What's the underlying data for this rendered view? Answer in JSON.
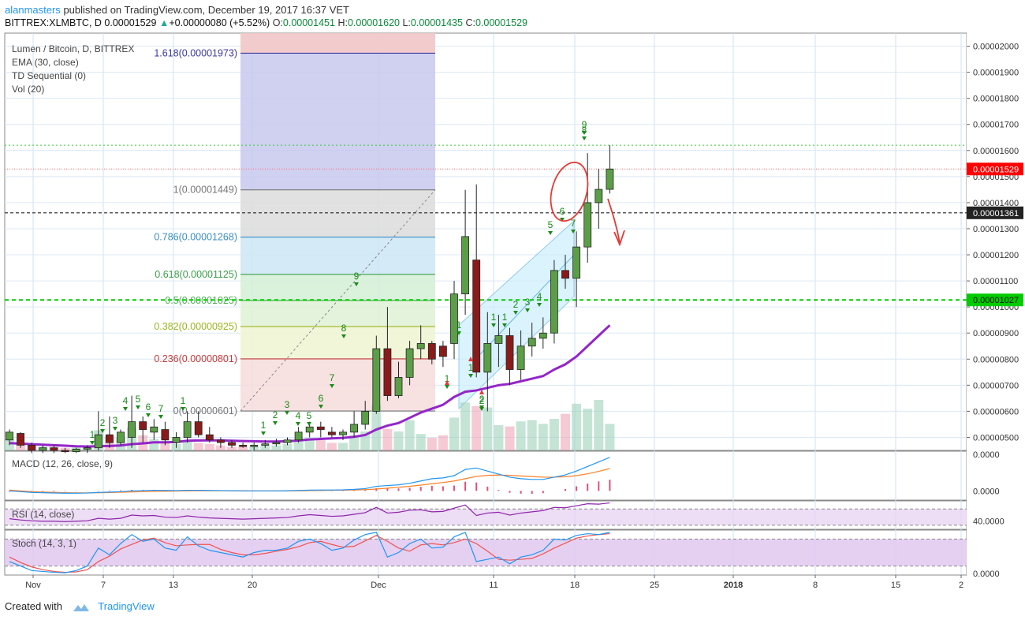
{
  "header": {
    "author": "alanmasters",
    "published_text": "published on TradingView.com, December 19, 2017 16:37 VET",
    "symbol": "BITTREX:XLMBTC, D",
    "last": "0.00001529",
    "change": "+0.00000080 (+5.52%)",
    "open_label": "O:",
    "open": "0.00001451",
    "high_label": "H:",
    "high": "0.00001620",
    "low_label": "L:",
    "low": "0.00001435",
    "close_label": "C:",
    "close": "0.00001529"
  },
  "legend": {
    "title": "Lumen / Bitcoin, D, BITTREX",
    "ema": "EMA (30, close)",
    "td": "TD Sequential (0)",
    "vol": "Vol (20)"
  },
  "panes": {
    "macd": "MACD (12, 26, close, 9)",
    "rsi": "RSI (14, close)",
    "stoch": "Stoch (14, 3, 1)"
  },
  "price_axis_labels": [
    "0.00002000",
    "0.00001900",
    "0.00001800",
    "0.00001700",
    "0.00001600",
    "0.00001500",
    "0.00001400",
    "0.00001300",
    "0.00001200",
    "0.00001100",
    "0.00001000",
    "0.00000900",
    "0.00000800",
    "0.00000700",
    "0.00000600",
    "0.00000500"
  ],
  "price_badges": {
    "last": "0.00001529",
    "dotted": "0.00001361",
    "support": "0.00001027"
  },
  "macd_axis_labels": [
    "0.0000",
    "0.0000"
  ],
  "rsi_axis_label": "40.0000",
  "stoch_axis_label": "0.0000",
  "time_axis_labels": [
    "Nov",
    "7",
    "13",
    "20",
    "Dec",
    "11",
    "18",
    "25",
    "2018",
    "8",
    "15",
    "2"
  ],
  "fib_labels": [
    "1.618(0.00001973)",
    "1(0.00001449)",
    "0.786(0.00001268)",
    "0.618(0.00001125)",
    "0.5(0.00001025)",
    "0.382(0.00000925)",
    "0.236(0.00000801)",
    "0(0.00000601)"
  ],
  "td_labels": [
    "1",
    "2",
    "3",
    "4",
    "5",
    "6",
    "7",
    "1",
    "1",
    "2",
    "3",
    "4",
    "5",
    "6",
    "7",
    "8",
    "9",
    "1",
    "1",
    "2",
    "1",
    "1",
    "2",
    "3",
    "4",
    "5",
    "6",
    "7",
    "8",
    "9",
    "1",
    "2"
  ],
  "footer": {
    "created_with": "Created with",
    "brand": "TradingView"
  },
  "colors": {
    "up_candle": "#5b9e47",
    "down_candle": "#8a1b1b",
    "ema": "#9426c9",
    "support_line": "#00cc00",
    "last_badge": "#ff0000",
    "dotted_badge": "#222222",
    "support_badge": "#00cc00",
    "fib_1618": "#3a3aa0",
    "fib_1": "#777777",
    "fib_0786": "#3a8fc4",
    "fib_0618": "#3aa04a",
    "fib_05": "#4caf50",
    "fib_0382": "#9bb51f",
    "fib_0236": "#c43a3a",
    "fib_0": "#777777",
    "macd_line": "#2196f3",
    "signal_line": "#ff7f27",
    "rsi_line": "#8e24aa",
    "stoch_k": "#2196f3",
    "stoch_d": "#ef5350"
  },
  "chart_data": {
    "type": "candlestick",
    "title": "Lumen / Bitcoin, D, BITTREX",
    "xlabel": "",
    "ylabel": "",
    "ylim": [
      4.5e-06,
      2.05e-05
    ],
    "candles": [
      {
        "o": 4.9e-06,
        "h": 5.3e-06,
        "l": 4.7e-06,
        "c": 5.2e-06
      },
      {
        "o": 5.15e-06,
        "h": 5.2e-06,
        "l": 4.6e-06,
        "c": 4.7e-06
      },
      {
        "o": 4.7e-06,
        "h": 4.8e-06,
        "l": 4.4e-06,
        "c": 4.5e-06
      },
      {
        "o": 4.5e-06,
        "h": 4.7e-06,
        "l": 4.4e-06,
        "c": 4.6e-06
      },
      {
        "o": 4.6e-06,
        "h": 4.7e-06,
        "l": 4.4e-06,
        "c": 4.5e-06
      },
      {
        "o": 4.5e-06,
        "h": 4.6e-06,
        "l": 4.4e-06,
        "c": 4.45e-06
      },
      {
        "o": 4.45e-06,
        "h": 4.6e-06,
        "l": 4.4e-06,
        "c": 4.55e-06
      },
      {
        "o": 4.55e-06,
        "h": 4.7e-06,
        "l": 4.4e-06,
        "c": 4.6e-06
      },
      {
        "o": 4.6e-06,
        "h": 6e-06,
        "l": 4.5e-06,
        "c": 5.1e-06
      },
      {
        "o": 5.1e-06,
        "h": 5.8e-06,
        "l": 4.6e-06,
        "c": 4.8e-06
      },
      {
        "o": 4.8e-06,
        "h": 5.3e-06,
        "l": 4.7e-06,
        "c": 5.2e-06
      },
      {
        "o": 5e-06,
        "h": 6.6e-06,
        "l": 4.6e-06,
        "c": 5.6e-06
      },
      {
        "o": 5.6e-06,
        "h": 5.8e-06,
        "l": 4.8e-06,
        "c": 5.3e-06
      },
      {
        "o": 5.2e-06,
        "h": 5.7e-06,
        "l": 4.9e-06,
        "c": 5.4e-06
      },
      {
        "o": 5.3e-06,
        "h": 5.6e-06,
        "l": 4.7e-06,
        "c": 4.9e-06
      },
      {
        "o": 4.8e-06,
        "h": 5.2e-06,
        "l": 4.6e-06,
        "c": 5e-06
      },
      {
        "o": 5e-06,
        "h": 6e-06,
        "l": 4.8e-06,
        "c": 5.6e-06
      },
      {
        "o": 5.6e-06,
        "h": 6e-06,
        "l": 5e-06,
        "c": 5.1e-06
      },
      {
        "o": 5.1e-06,
        "h": 5.4e-06,
        "l": 4.8e-06,
        "c": 4.9e-06
      },
      {
        "o": 4.9e-06,
        "h": 5e-06,
        "l": 4.6e-06,
        "c": 4.8e-06
      },
      {
        "o": 4.8e-06,
        "h": 4.9e-06,
        "l": 4.6e-06,
        "c": 4.7e-06
      },
      {
        "o": 4.7e-06,
        "h": 4.8e-06,
        "l": 4.6e-06,
        "c": 4.65e-06
      },
      {
        "o": 4.65e-06,
        "h": 4.8e-06,
        "l": 4.5e-06,
        "c": 4.7e-06
      },
      {
        "o": 4.7e-06,
        "h": 4.9e-06,
        "l": 4.6e-06,
        "c": 4.75e-06
      },
      {
        "o": 4.75e-06,
        "h": 4.95e-06,
        "l": 4.65e-06,
        "c": 4.8e-06
      },
      {
        "o": 4.8e-06,
        "h": 5e-06,
        "l": 4.7e-06,
        "c": 4.9e-06
      },
      {
        "o": 4.9e-06,
        "h": 5.4e-06,
        "l": 4.8e-06,
        "c": 5.2e-06
      },
      {
        "o": 5.2e-06,
        "h": 5.6e-06,
        "l": 5e-06,
        "c": 5.4e-06
      },
      {
        "o": 5.4e-06,
        "h": 5.6e-06,
        "l": 5e-06,
        "c": 5.3e-06
      },
      {
        "o": 5.2e-06,
        "h": 5.4e-06,
        "l": 5e-06,
        "c": 5.1e-06
      },
      {
        "o": 5.1e-06,
        "h": 5.3e-06,
        "l": 4.9e-06,
        "c": 5.2e-06
      },
      {
        "o": 5.2e-06,
        "h": 6e-06,
        "l": 5e-06,
        "c": 5.5e-06
      },
      {
        "o": 5.5e-06,
        "h": 6.4e-06,
        "l": 5.3e-06,
        "c": 6e-06
      },
      {
        "o": 6e-06,
        "h": 8.9e-06,
        "l": 5.9e-06,
        "c": 8.4e-06
      },
      {
        "o": 8.4e-06,
        "h": 1e-05,
        "l": 6.4e-06,
        "c": 6.6e-06
      },
      {
        "o": 6.6e-06,
        "h": 7.9e-06,
        "l": 6.5e-06,
        "c": 7.3e-06
      },
      {
        "o": 7.3e-06,
        "h": 8.7e-06,
        "l": 7e-06,
        "c": 8.4e-06
      },
      {
        "o": 8.4e-06,
        "h": 9.3e-06,
        "l": 8e-06,
        "c": 8.6e-06
      },
      {
        "o": 8.6e-06,
        "h": 8.7e-06,
        "l": 7.8e-06,
        "c": 8e-06
      },
      {
        "o": 8.5e-06,
        "h": 8.7e-06,
        "l": 7.7e-06,
        "c": 8.1e-06
      },
      {
        "o": 8.6e-06,
        "h": 1.1e-05,
        "l": 8e-06,
        "c": 1.05e-05
      },
      {
        "o": 1.05e-05,
        "h": 1.449e-05,
        "l": 9.7e-06,
        "c": 1.27e-05
      },
      {
        "o": 1.18e-05,
        "h": 1.47e-05,
        "l": 7.3e-06,
        "c": 7.5e-06
      },
      {
        "o": 7.5e-06,
        "h": 9.8e-06,
        "l": 6e-06,
        "c": 8.6e-06
      },
      {
        "o": 8.6e-06,
        "h": 9.7e-06,
        "l": 7.7e-06,
        "c": 8.9e-06
      },
      {
        "o": 8.9e-06,
        "h": 9.2e-06,
        "l": 7e-06,
        "c": 7.6e-06
      },
      {
        "o": 7.6e-06,
        "h": 9.1e-06,
        "l": 7.2e-06,
        "c": 8.5e-06
      },
      {
        "o": 8.5e-06,
        "h": 9.4e-06,
        "l": 8.1e-06,
        "c": 8.8e-06
      },
      {
        "o": 8.8e-06,
        "h": 9.6e-06,
        "l": 8.4e-06,
        "c": 9e-06
      },
      {
        "o": 9e-06,
        "h": 1.18e-05,
        "l": 8.6e-06,
        "c": 1.14e-05
      },
      {
        "o": 1.14e-05,
        "h": 1.2e-05,
        "l": 1.07e-05,
        "c": 1.11e-05
      },
      {
        "o": 1.11e-05,
        "h": 1.29e-05,
        "l": 1e-05,
        "c": 1.23e-05
      },
      {
        "o": 1.23e-05,
        "h": 1.59e-05,
        "l": 1.17e-05,
        "c": 1.4e-05
      },
      {
        "o": 1.4e-05,
        "h": 1.53e-05,
        "l": 1.3e-05,
        "c": 1.451e-05
      },
      {
        "o": 1.451e-05,
        "h": 1.62e-05,
        "l": 1.435e-05,
        "c": 1.529e-05
      }
    ],
    "ema30": [
      4.78e-06,
      4.76e-06,
      4.74e-06,
      4.72e-06,
      4.7e-06,
      4.68e-06,
      4.66e-06,
      4.65e-06,
      4.66e-06,
      4.67e-06,
      4.69e-06,
      4.74e-06,
      4.77e-06,
      4.81e-06,
      4.81e-06,
      4.82e-06,
      4.87e-06,
      4.88e-06,
      4.89e-06,
      4.88e-06,
      4.87e-06,
      4.86e-06,
      4.85e-06,
      4.84e-06,
      4.84e-06,
      4.85e-06,
      4.88e-06,
      4.92e-06,
      4.94e-06,
      4.96e-06,
      4.98e-06,
      5.02e-06,
      5.09e-06,
      5.3e-06,
      5.45e-06,
      5.55e-06,
      5.75e-06,
      5.95e-06,
      6.1e-06,
      6.25e-06,
      6.55e-06,
      6.75e-06,
      6.8e-06,
      6.9e-06,
      7e-06,
      7.05e-06,
      7.15e-06,
      7.25e-06,
      7.35e-06,
      7.6e-06,
      7.8e-06,
      8.1e-06,
      8.5e-06,
      8.9e-06,
      9.3e-06
    ],
    "fibonacci": [
      {
        "level": "1.618",
        "price": 1.973e-05
      },
      {
        "level": "1",
        "price": 1.449e-05
      },
      {
        "level": "0.786",
        "price": 1.268e-05
      },
      {
        "level": "0.618",
        "price": 1.125e-05
      },
      {
        "level": "0.5",
        "price": 1.025e-05
      },
      {
        "level": "0.382",
        "price": 9.25e-06
      },
      {
        "level": "0.236",
        "price": 8.01e-06
      },
      {
        "level": "0",
        "price": 6.01e-06
      }
    ],
    "horizontal_lines": [
      1.62e-05,
      1.529e-05,
      1.361e-05,
      1.027e-05
    ],
    "macd": [
      0.0,
      -0.05,
      -0.1,
      -0.12,
      -0.14,
      -0.15,
      -0.15,
      -0.14,
      -0.1,
      -0.08,
      -0.05,
      0.0,
      0.02,
      0.04,
      0.03,
      0.02,
      0.04,
      0.04,
      0.03,
      0.02,
      0.01,
      0.0,
      0.0,
      0.0,
      0.0,
      0.01,
      0.03,
      0.05,
      0.06,
      0.06,
      0.07,
      0.1,
      0.15,
      0.3,
      0.35,
      0.4,
      0.5,
      0.65,
      0.8,
      0.85,
      1.0,
      1.4,
      1.5,
      1.3,
      1.1,
      0.9,
      0.8,
      0.75,
      0.75,
      0.9,
      1.05,
      1.3,
      1.6,
      1.9,
      2.2
    ],
    "macd_signal": [
      0.05,
      0.0,
      -0.05,
      -0.08,
      -0.1,
      -0.12,
      -0.13,
      -0.13,
      -0.12,
      -0.11,
      -0.09,
      -0.07,
      -0.05,
      -0.03,
      -0.02,
      -0.01,
      0.0,
      0.01,
      0.01,
      0.01,
      0.01,
      0.01,
      0.0,
      0.0,
      0.0,
      0.0,
      0.01,
      0.02,
      0.03,
      0.04,
      0.05,
      0.06,
      0.08,
      0.12,
      0.18,
      0.24,
      0.3,
      0.38,
      0.47,
      0.55,
      0.65,
      0.8,
      0.95,
      1.02,
      1.04,
      1.02,
      0.98,
      0.94,
      0.9,
      0.9,
      0.93,
      1.0,
      1.12,
      1.28,
      1.47
    ],
    "rsi": [
      46,
      43,
      41,
      40,
      40,
      39,
      40,
      41,
      47,
      45,
      47,
      55,
      53,
      54,
      50,
      49,
      53,
      50,
      48,
      47,
      46,
      45,
      46,
      47,
      48,
      49,
      53,
      56,
      54,
      52,
      53,
      57,
      61,
      74,
      60,
      62,
      67,
      68,
      63,
      64,
      72,
      80,
      54,
      60,
      62,
      55,
      60,
      63,
      66,
      74,
      73,
      78,
      83,
      82,
      85
    ],
    "stoch_k": [
      30,
      20,
      10,
      8,
      6,
      5,
      10,
      20,
      60,
      45,
      70,
      90,
      75,
      80,
      60,
      55,
      85,
      65,
      55,
      50,
      45,
      40,
      50,
      55,
      55,
      60,
      75,
      80,
      70,
      55,
      60,
      78,
      90,
      95,
      40,
      50,
      70,
      80,
      60,
      62,
      85,
      95,
      30,
      35,
      40,
      25,
      40,
      45,
      55,
      80,
      78,
      88,
      92,
      90,
      95
    ],
    "stoch_d": [
      40,
      28,
      18,
      12,
      8,
      6,
      7,
      12,
      30,
      42,
      58,
      68,
      78,
      82,
      72,
      65,
      67,
      68,
      68,
      57,
      50,
      45,
      45,
      48,
      53,
      57,
      63,
      72,
      75,
      68,
      62,
      64,
      76,
      88,
      75,
      60,
      53,
      67,
      70,
      67,
      72,
      80,
      70,
      53,
      35,
      33,
      35,
      37,
      47,
      60,
      71,
      82,
      87,
      90,
      92
    ]
  }
}
